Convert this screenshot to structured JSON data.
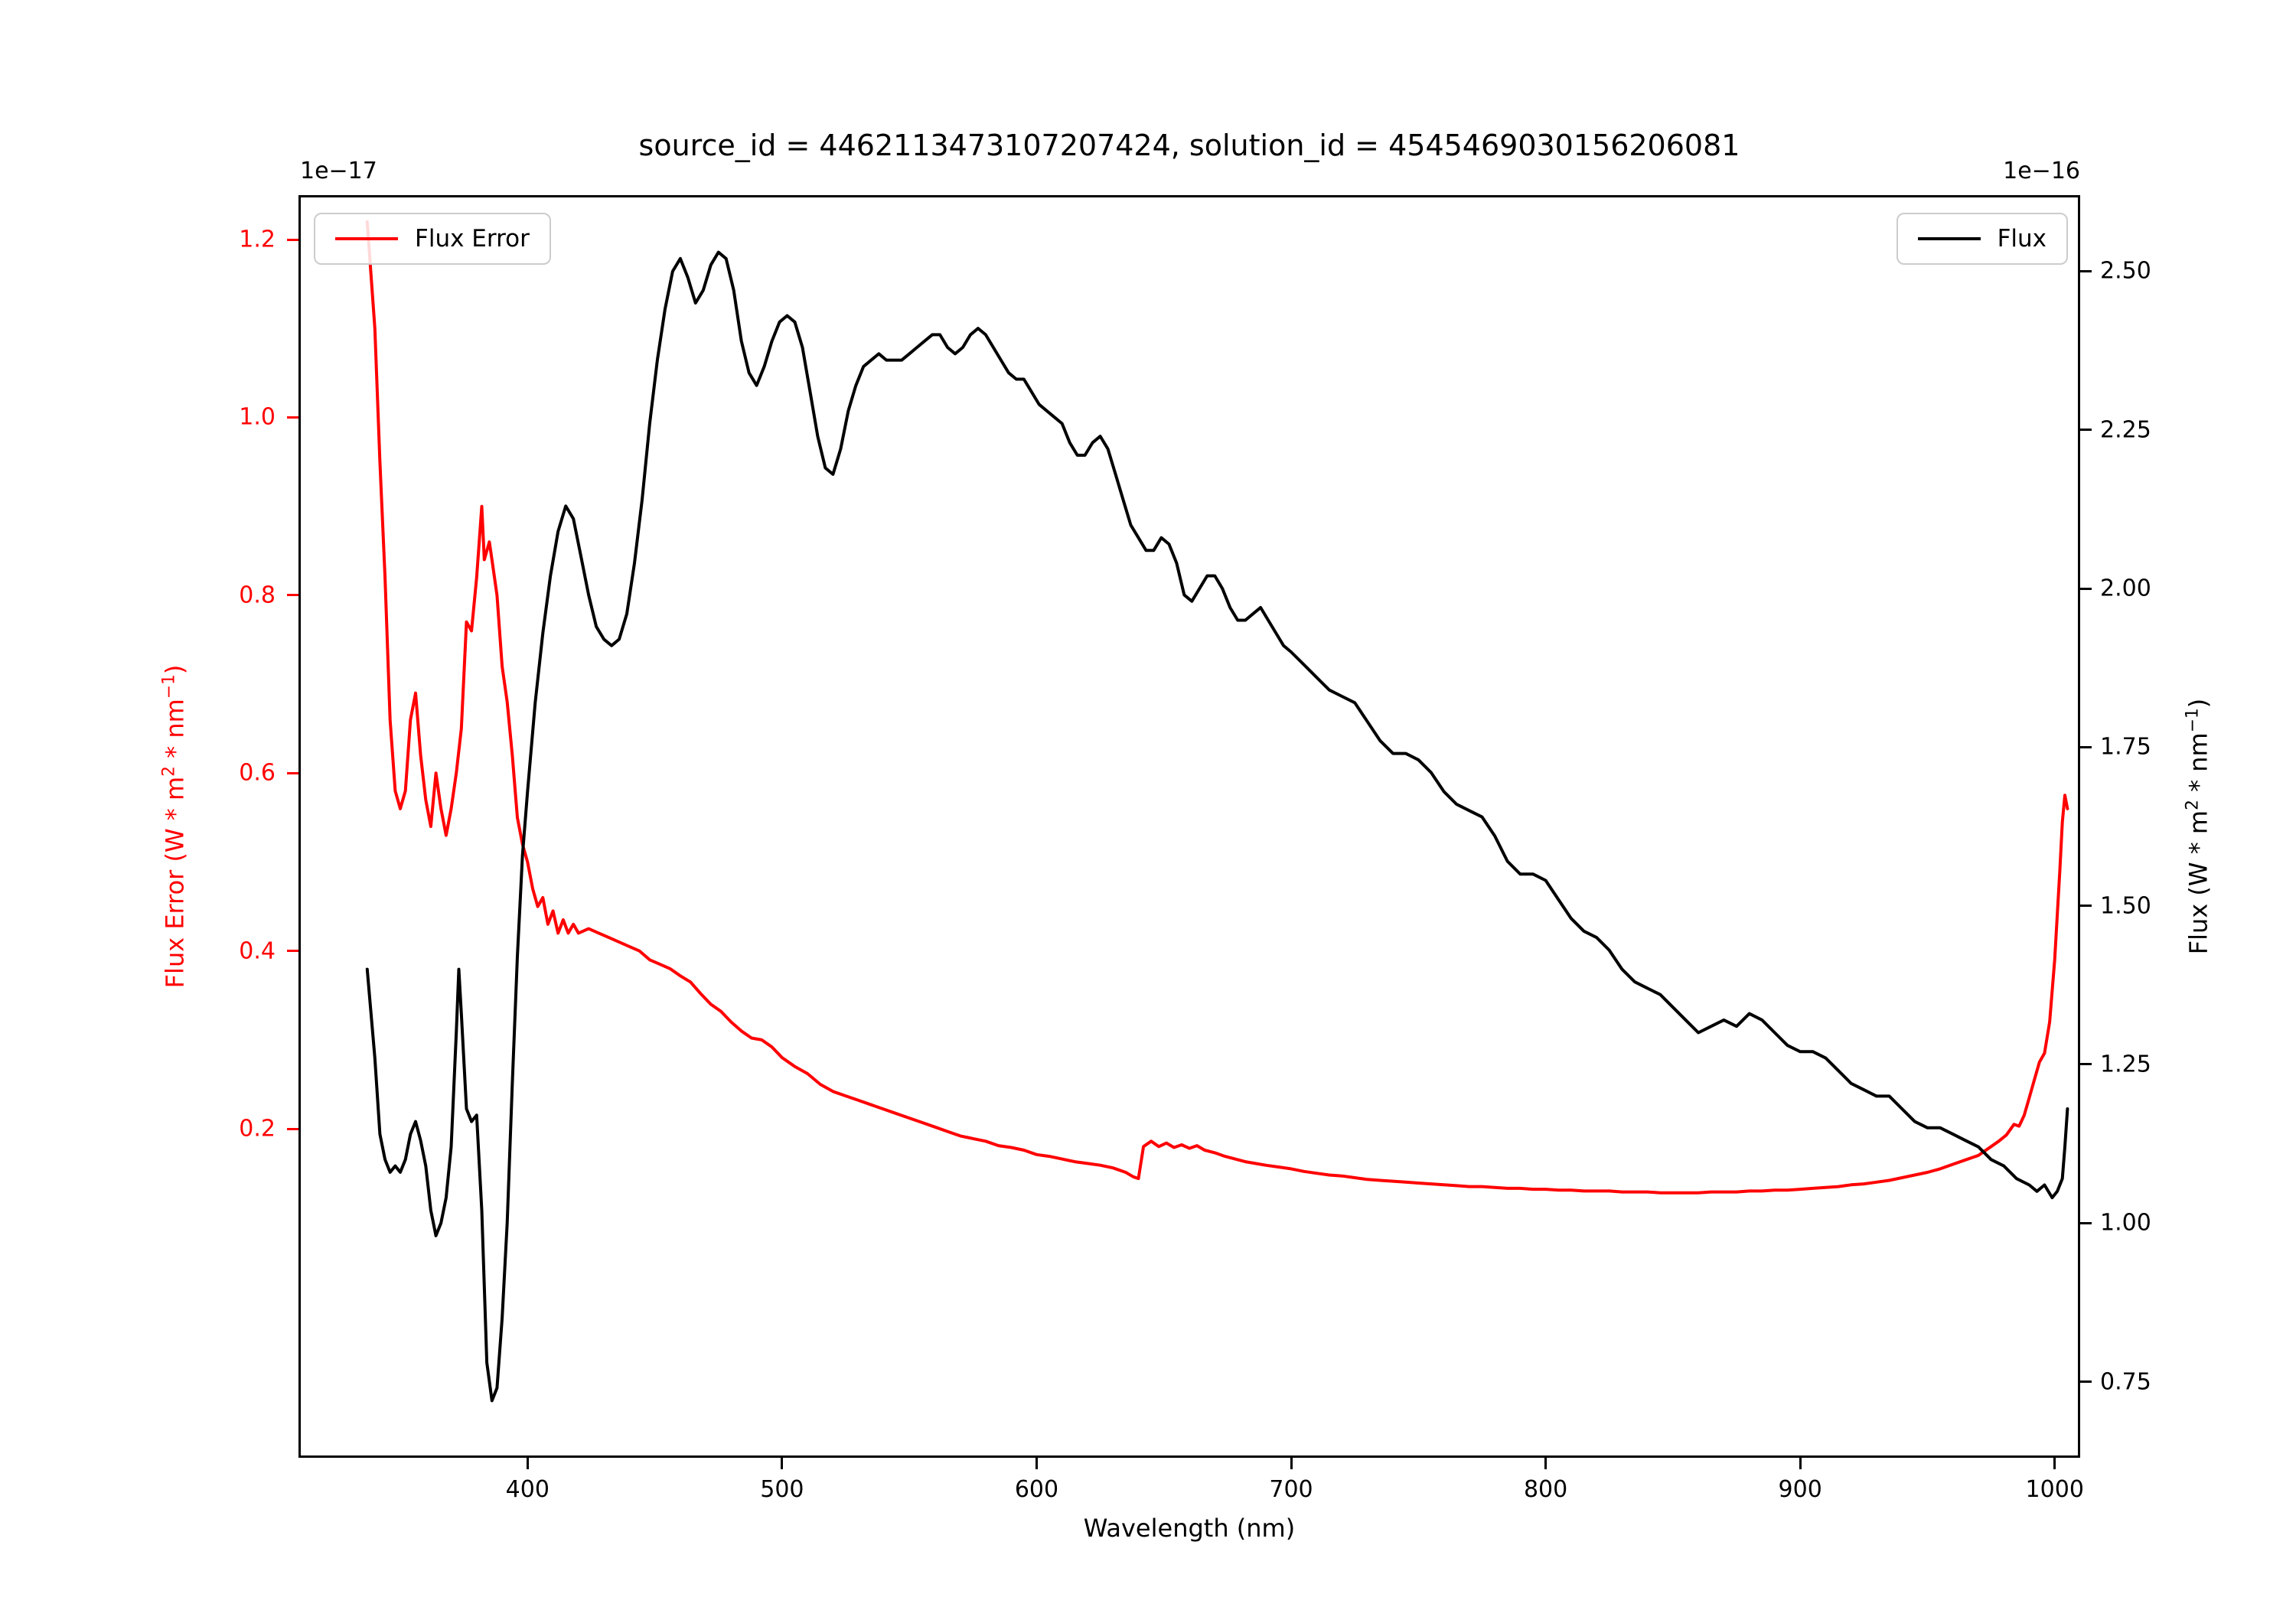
{
  "figure": {
    "title": "source_id = 4462113473107207424, solution_id = 4545469030156206081",
    "background": "#ffffff"
  },
  "axes": {
    "x": {
      "label": "Wavelength (nm)",
      "lim": [
        310,
        1010
      ],
      "tick_labels": [
        "400",
        "500",
        "600",
        "700",
        "800",
        "900",
        "1000"
      ]
    },
    "y_left": {
      "offset_text": "1e−17",
      "color": "#ff0000",
      "lim": [
        -0.17,
        1.25
      ],
      "tick_labels": [
        "0.2",
        "0.4",
        "0.6",
        "0.8",
        "1.0",
        "1.2"
      ],
      "label_parts": {
        "pre": "Flux Error (W * m",
        "sup_a": "2",
        "mid": " * nm",
        "sup_b": "−1",
        "post": ")"
      }
    },
    "y_right": {
      "offset_text": "1e−16",
      "color": "#000000",
      "lim": [
        0.63,
        2.62
      ],
      "tick_labels": [
        "0.75",
        "1.00",
        "1.25",
        "1.50",
        "1.75",
        "2.00",
        "2.25",
        "2.50"
      ],
      "label_parts": {
        "pre": "Flux (W * m",
        "sup_a": "2",
        "mid": " * nm",
        "sup_b": "−1",
        "post": ")"
      }
    }
  },
  "legends": {
    "left": {
      "label": "Flux Error",
      "color": "#ff0000"
    },
    "right": {
      "label": "Flux",
      "color": "#000000"
    }
  },
  "chart_data": {
    "type": "line",
    "title": "source_id = 4462113473107207424, solution_id = 4545469030156206081",
    "xlabel": "Wavelength (nm)",
    "ylabel_left": "Flux Error (W * m^2 * nm^-1), scale 1e-17",
    "ylabel_right": "Flux (W * m^2 * nm^-1), scale 1e-16",
    "xlim": [
      310,
      1010
    ],
    "ylim_left": [
      -0.17,
      1.25
    ],
    "ylim_right": [
      0.63,
      2.62
    ],
    "grid": false,
    "legend_position": [
      "upper left",
      "upper right"
    ],
    "series": [
      {
        "name": "Flux Error",
        "axis": "left",
        "color": "#ff0000",
        "unit_scale": "1e-17",
        "x": [
          337,
          340,
          342,
          344,
          346,
          348,
          350,
          352,
          354,
          356,
          358,
          360,
          362,
          364,
          366,
          368,
          370,
          372,
          374,
          376,
          378,
          380,
          382,
          383,
          385,
          386,
          388,
          390,
          392,
          394,
          396,
          398,
          400,
          402,
          404,
          406,
          408,
          410,
          412,
          414,
          416,
          418,
          420,
          424,
          428,
          432,
          436,
          440,
          444,
          448,
          452,
          456,
          460,
          464,
          468,
          472,
          476,
          480,
          484,
          488,
          492,
          496,
          500,
          505,
          510,
          515,
          520,
          525,
          530,
          535,
          540,
          545,
          550,
          555,
          560,
          565,
          570,
          575,
          580,
          585,
          590,
          595,
          600,
          605,
          610,
          615,
          620,
          625,
          630,
          635,
          638,
          640,
          642,
          645,
          648,
          651,
          654,
          657,
          660,
          663,
          666,
          670,
          674,
          678,
          682,
          686,
          690,
          695,
          700,
          705,
          710,
          715,
          720,
          725,
          730,
          735,
          740,
          745,
          750,
          755,
          760,
          765,
          770,
          775,
          780,
          785,
          790,
          795,
          800,
          805,
          810,
          815,
          820,
          825,
          830,
          835,
          840,
          845,
          850,
          855,
          860,
          865,
          870,
          875,
          880,
          885,
          890,
          895,
          900,
          905,
          910,
          915,
          920,
          925,
          930,
          935,
          940,
          945,
          950,
          955,
          960,
          965,
          970,
          975,
          978,
          981,
          984,
          986,
          988,
          990,
          992,
          994,
          996,
          998,
          1000,
          1002,
          1003,
          1004,
          1005
        ],
        "y": [
          1.22,
          1.1,
          0.95,
          0.82,
          0.66,
          0.58,
          0.56,
          0.58,
          0.66,
          0.69,
          0.62,
          0.57,
          0.54,
          0.6,
          0.56,
          0.53,
          0.56,
          0.6,
          0.65,
          0.77,
          0.76,
          0.82,
          0.9,
          0.84,
          0.86,
          0.84,
          0.8,
          0.72,
          0.68,
          0.62,
          0.55,
          0.52,
          0.5,
          0.47,
          0.45,
          0.46,
          0.43,
          0.445,
          0.42,
          0.435,
          0.42,
          0.43,
          0.42,
          0.425,
          0.42,
          0.415,
          0.41,
          0.405,
          0.4,
          0.39,
          0.385,
          0.38,
          0.372,
          0.365,
          0.352,
          0.34,
          0.332,
          0.32,
          0.31,
          0.302,
          0.3,
          0.292,
          0.28,
          0.27,
          0.262,
          0.25,
          0.242,
          0.237,
          0.232,
          0.227,
          0.222,
          0.217,
          0.212,
          0.207,
          0.202,
          0.197,
          0.192,
          0.189,
          0.186,
          0.181,
          0.179,
          0.176,
          0.171,
          0.169,
          0.166,
          0.163,
          0.161,
          0.159,
          0.156,
          0.151,
          0.146,
          0.144,
          0.18,
          0.186,
          0.18,
          0.184,
          0.179,
          0.182,
          0.178,
          0.181,
          0.176,
          0.173,
          0.169,
          0.166,
          0.163,
          0.161,
          0.159,
          0.157,
          0.155,
          0.152,
          0.15,
          0.148,
          0.147,
          0.145,
          0.143,
          0.142,
          0.141,
          0.14,
          0.139,
          0.138,
          0.137,
          0.136,
          0.135,
          0.135,
          0.134,
          0.133,
          0.133,
          0.132,
          0.132,
          0.131,
          0.131,
          0.13,
          0.13,
          0.13,
          0.129,
          0.129,
          0.129,
          0.128,
          0.128,
          0.128,
          0.128,
          0.129,
          0.129,
          0.129,
          0.13,
          0.13,
          0.131,
          0.131,
          0.132,
          0.133,
          0.134,
          0.135,
          0.137,
          0.138,
          0.14,
          0.142,
          0.145,
          0.148,
          0.151,
          0.155,
          0.16,
          0.165,
          0.17,
          0.18,
          0.186,
          0.193,
          0.205,
          0.203,
          0.215,
          0.235,
          0.255,
          0.275,
          0.285,
          0.32,
          0.39,
          0.49,
          0.545,
          0.575,
          0.56
        ]
      },
      {
        "name": "Flux",
        "axis": "right",
        "color": "#000000",
        "unit_scale": "1e-16",
        "x": [
          337,
          340,
          342,
          344,
          346,
          348,
          350,
          352,
          354,
          356,
          358,
          360,
          362,
          364,
          366,
          368,
          370,
          372,
          373,
          374,
          376,
          378,
          380,
          382,
          384,
          386,
          388,
          390,
          392,
          394,
          396,
          398,
          400,
          403,
          406,
          409,
          412,
          415,
          418,
          421,
          424,
          427,
          430,
          433,
          436,
          439,
          442,
          445,
          448,
          451,
          454,
          457,
          460,
          463,
          466,
          469,
          472,
          475,
          478,
          481,
          484,
          487,
          490,
          493,
          496,
          499,
          502,
          505,
          508,
          511,
          514,
          517,
          520,
          523,
          526,
          529,
          532,
          535,
          538,
          541,
          544,
          547,
          550,
          553,
          556,
          559,
          562,
          565,
          568,
          571,
          574,
          577,
          580,
          583,
          586,
          589,
          592,
          595,
          598,
          601,
          604,
          607,
          610,
          613,
          616,
          619,
          622,
          625,
          628,
          631,
          634,
          637,
          640,
          643,
          646,
          649,
          652,
          655,
          658,
          661,
          664,
          667,
          670,
          673,
          676,
          679,
          682,
          685,
          688,
          691,
          694,
          697,
          700,
          705,
          710,
          715,
          720,
          725,
          730,
          735,
          740,
          745,
          750,
          755,
          760,
          765,
          770,
          775,
          780,
          785,
          790,
          795,
          800,
          805,
          810,
          815,
          820,
          825,
          830,
          835,
          840,
          845,
          850,
          855,
          860,
          865,
          870,
          875,
          880,
          885,
          890,
          895,
          900,
          905,
          910,
          915,
          920,
          925,
          930,
          935,
          940,
          945,
          950,
          955,
          960,
          965,
          970,
          975,
          980,
          985,
          990,
          993,
          996,
          999,
          1001,
          1003,
          1004,
          1005
        ],
        "y": [
          1.4,
          1.26,
          1.14,
          1.1,
          1.08,
          1.09,
          1.08,
          1.1,
          1.14,
          1.16,
          1.13,
          1.09,
          1.02,
          0.98,
          1.0,
          1.04,
          1.12,
          1.3,
          1.4,
          1.33,
          1.18,
          1.16,
          1.17,
          1.02,
          0.78,
          0.72,
          0.74,
          0.85,
          1.0,
          1.22,
          1.42,
          1.58,
          1.68,
          1.82,
          1.93,
          2.02,
          2.09,
          2.13,
          2.11,
          2.05,
          1.99,
          1.94,
          1.92,
          1.91,
          1.92,
          1.96,
          2.04,
          2.14,
          2.26,
          2.36,
          2.44,
          2.5,
          2.52,
          2.49,
          2.45,
          2.47,
          2.51,
          2.53,
          2.52,
          2.47,
          2.39,
          2.34,
          2.32,
          2.35,
          2.39,
          2.42,
          2.43,
          2.42,
          2.38,
          2.31,
          2.24,
          2.19,
          2.18,
          2.22,
          2.28,
          2.32,
          2.35,
          2.36,
          2.37,
          2.36,
          2.36,
          2.36,
          2.37,
          2.38,
          2.39,
          2.4,
          2.4,
          2.38,
          2.37,
          2.38,
          2.4,
          2.41,
          2.4,
          2.38,
          2.36,
          2.34,
          2.33,
          2.33,
          2.31,
          2.29,
          2.28,
          2.27,
          2.26,
          2.23,
          2.21,
          2.21,
          2.23,
          2.24,
          2.22,
          2.18,
          2.14,
          2.1,
          2.08,
          2.06,
          2.06,
          2.08,
          2.07,
          2.04,
          1.99,
          1.98,
          2.0,
          2.02,
          2.02,
          2.0,
          1.97,
          1.95,
          1.95,
          1.96,
          1.97,
          1.95,
          1.93,
          1.91,
          1.9,
          1.88,
          1.86,
          1.84,
          1.83,
          1.82,
          1.79,
          1.76,
          1.74,
          1.74,
          1.73,
          1.71,
          1.68,
          1.66,
          1.65,
          1.64,
          1.61,
          1.57,
          1.55,
          1.55,
          1.54,
          1.51,
          1.48,
          1.46,
          1.45,
          1.43,
          1.4,
          1.38,
          1.37,
          1.36,
          1.34,
          1.32,
          1.3,
          1.31,
          1.32,
          1.31,
          1.33,
          1.32,
          1.3,
          1.28,
          1.27,
          1.27,
          1.26,
          1.24,
          1.22,
          1.21,
          1.2,
          1.2,
          1.18,
          1.16,
          1.15,
          1.15,
          1.14,
          1.13,
          1.12,
          1.1,
          1.09,
          1.07,
          1.06,
          1.05,
          1.06,
          1.04,
          1.05,
          1.07,
          1.12,
          1.18
        ]
      }
    ]
  }
}
